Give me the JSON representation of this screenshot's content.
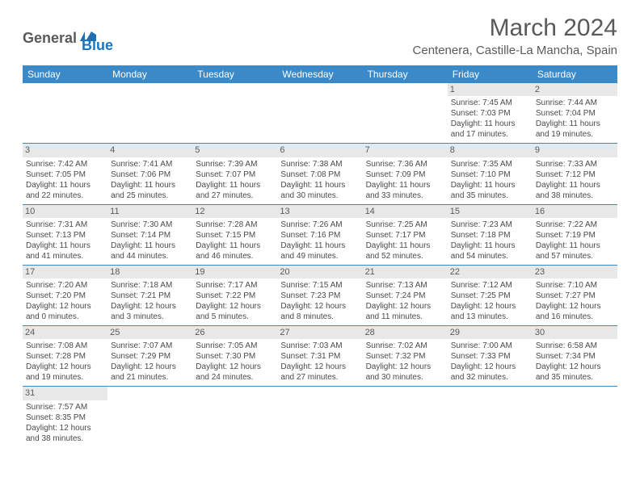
{
  "logo": {
    "general": "General",
    "blue": "Blue"
  },
  "title": "March 2024",
  "location": "Centenera, Castille-La Mancha, Spain",
  "colors": {
    "header_bg": "#3b89c7",
    "header_text": "#ffffff",
    "daynum_bg": "#e8e8e8",
    "text": "#5a5a5a",
    "rule": "#3b89c7"
  },
  "dayHeaders": [
    "Sunday",
    "Monday",
    "Tuesday",
    "Wednesday",
    "Thursday",
    "Friday",
    "Saturday"
  ],
  "weeks": [
    [
      null,
      null,
      null,
      null,
      null,
      {
        "n": "1",
        "sr": "Sunrise: 7:45 AM",
        "ss": "Sunset: 7:03 PM",
        "d1": "Daylight: 11 hours",
        "d2": "and 17 minutes."
      },
      {
        "n": "2",
        "sr": "Sunrise: 7:44 AM",
        "ss": "Sunset: 7:04 PM",
        "d1": "Daylight: 11 hours",
        "d2": "and 19 minutes."
      }
    ],
    [
      {
        "n": "3",
        "sr": "Sunrise: 7:42 AM",
        "ss": "Sunset: 7:05 PM",
        "d1": "Daylight: 11 hours",
        "d2": "and 22 minutes."
      },
      {
        "n": "4",
        "sr": "Sunrise: 7:41 AM",
        "ss": "Sunset: 7:06 PM",
        "d1": "Daylight: 11 hours",
        "d2": "and 25 minutes."
      },
      {
        "n": "5",
        "sr": "Sunrise: 7:39 AM",
        "ss": "Sunset: 7:07 PM",
        "d1": "Daylight: 11 hours",
        "d2": "and 27 minutes."
      },
      {
        "n": "6",
        "sr": "Sunrise: 7:38 AM",
        "ss": "Sunset: 7:08 PM",
        "d1": "Daylight: 11 hours",
        "d2": "and 30 minutes."
      },
      {
        "n": "7",
        "sr": "Sunrise: 7:36 AM",
        "ss": "Sunset: 7:09 PM",
        "d1": "Daylight: 11 hours",
        "d2": "and 33 minutes."
      },
      {
        "n": "8",
        "sr": "Sunrise: 7:35 AM",
        "ss": "Sunset: 7:10 PM",
        "d1": "Daylight: 11 hours",
        "d2": "and 35 minutes."
      },
      {
        "n": "9",
        "sr": "Sunrise: 7:33 AM",
        "ss": "Sunset: 7:12 PM",
        "d1": "Daylight: 11 hours",
        "d2": "and 38 minutes."
      }
    ],
    [
      {
        "n": "10",
        "sr": "Sunrise: 7:31 AM",
        "ss": "Sunset: 7:13 PM",
        "d1": "Daylight: 11 hours",
        "d2": "and 41 minutes."
      },
      {
        "n": "11",
        "sr": "Sunrise: 7:30 AM",
        "ss": "Sunset: 7:14 PM",
        "d1": "Daylight: 11 hours",
        "d2": "and 44 minutes."
      },
      {
        "n": "12",
        "sr": "Sunrise: 7:28 AM",
        "ss": "Sunset: 7:15 PM",
        "d1": "Daylight: 11 hours",
        "d2": "and 46 minutes."
      },
      {
        "n": "13",
        "sr": "Sunrise: 7:26 AM",
        "ss": "Sunset: 7:16 PM",
        "d1": "Daylight: 11 hours",
        "d2": "and 49 minutes."
      },
      {
        "n": "14",
        "sr": "Sunrise: 7:25 AM",
        "ss": "Sunset: 7:17 PM",
        "d1": "Daylight: 11 hours",
        "d2": "and 52 minutes."
      },
      {
        "n": "15",
        "sr": "Sunrise: 7:23 AM",
        "ss": "Sunset: 7:18 PM",
        "d1": "Daylight: 11 hours",
        "d2": "and 54 minutes."
      },
      {
        "n": "16",
        "sr": "Sunrise: 7:22 AM",
        "ss": "Sunset: 7:19 PM",
        "d1": "Daylight: 11 hours",
        "d2": "and 57 minutes."
      }
    ],
    [
      {
        "n": "17",
        "sr": "Sunrise: 7:20 AM",
        "ss": "Sunset: 7:20 PM",
        "d1": "Daylight: 12 hours",
        "d2": "and 0 minutes."
      },
      {
        "n": "18",
        "sr": "Sunrise: 7:18 AM",
        "ss": "Sunset: 7:21 PM",
        "d1": "Daylight: 12 hours",
        "d2": "and 3 minutes."
      },
      {
        "n": "19",
        "sr": "Sunrise: 7:17 AM",
        "ss": "Sunset: 7:22 PM",
        "d1": "Daylight: 12 hours",
        "d2": "and 5 minutes."
      },
      {
        "n": "20",
        "sr": "Sunrise: 7:15 AM",
        "ss": "Sunset: 7:23 PM",
        "d1": "Daylight: 12 hours",
        "d2": "and 8 minutes."
      },
      {
        "n": "21",
        "sr": "Sunrise: 7:13 AM",
        "ss": "Sunset: 7:24 PM",
        "d1": "Daylight: 12 hours",
        "d2": "and 11 minutes."
      },
      {
        "n": "22",
        "sr": "Sunrise: 7:12 AM",
        "ss": "Sunset: 7:25 PM",
        "d1": "Daylight: 12 hours",
        "d2": "and 13 minutes."
      },
      {
        "n": "23",
        "sr": "Sunrise: 7:10 AM",
        "ss": "Sunset: 7:27 PM",
        "d1": "Daylight: 12 hours",
        "d2": "and 16 minutes."
      }
    ],
    [
      {
        "n": "24",
        "sr": "Sunrise: 7:08 AM",
        "ss": "Sunset: 7:28 PM",
        "d1": "Daylight: 12 hours",
        "d2": "and 19 minutes."
      },
      {
        "n": "25",
        "sr": "Sunrise: 7:07 AM",
        "ss": "Sunset: 7:29 PM",
        "d1": "Daylight: 12 hours",
        "d2": "and 21 minutes."
      },
      {
        "n": "26",
        "sr": "Sunrise: 7:05 AM",
        "ss": "Sunset: 7:30 PM",
        "d1": "Daylight: 12 hours",
        "d2": "and 24 minutes."
      },
      {
        "n": "27",
        "sr": "Sunrise: 7:03 AM",
        "ss": "Sunset: 7:31 PM",
        "d1": "Daylight: 12 hours",
        "d2": "and 27 minutes."
      },
      {
        "n": "28",
        "sr": "Sunrise: 7:02 AM",
        "ss": "Sunset: 7:32 PM",
        "d1": "Daylight: 12 hours",
        "d2": "and 30 minutes."
      },
      {
        "n": "29",
        "sr": "Sunrise: 7:00 AM",
        "ss": "Sunset: 7:33 PM",
        "d1": "Daylight: 12 hours",
        "d2": "and 32 minutes."
      },
      {
        "n": "30",
        "sr": "Sunrise: 6:58 AM",
        "ss": "Sunset: 7:34 PM",
        "d1": "Daylight: 12 hours",
        "d2": "and 35 minutes."
      }
    ],
    [
      {
        "n": "31",
        "sr": "Sunrise: 7:57 AM",
        "ss": "Sunset: 8:35 PM",
        "d1": "Daylight: 12 hours",
        "d2": "and 38 minutes."
      },
      null,
      null,
      null,
      null,
      null,
      null
    ]
  ]
}
